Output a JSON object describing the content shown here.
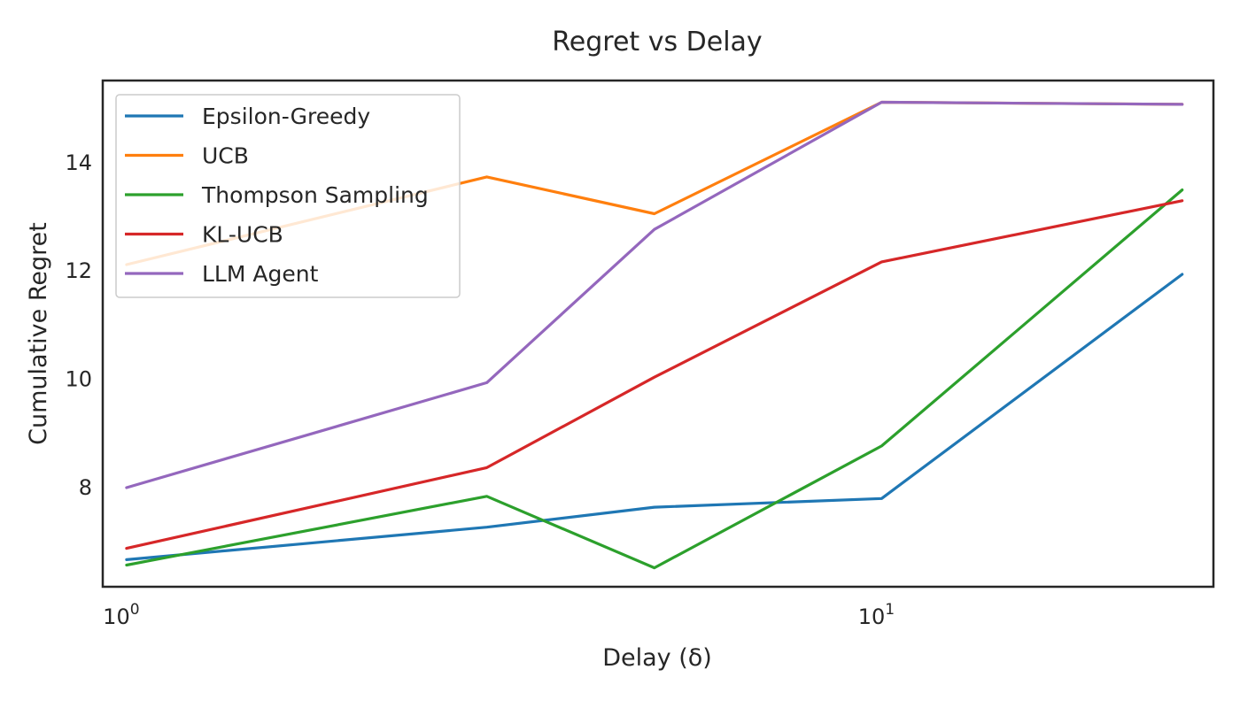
{
  "chart_data": {
    "type": "line",
    "title": "Regret vs Delay",
    "xlabel": "Delay (δ)",
    "ylabel": "Cumulative Regret",
    "x_scale": "log",
    "x": [
      1,
      3,
      5,
      10,
      25
    ],
    "xlim": [
      0.93,
      27.5
    ],
    "ylim": [
      6.15,
      15.5
    ],
    "xticks": [
      {
        "value": 1,
        "base": "10",
        "exp": "0"
      },
      {
        "value": 10,
        "base": "10",
        "exp": "1"
      }
    ],
    "yticks": [
      {
        "value": 8,
        "label": "8"
      },
      {
        "value": 10,
        "label": "10"
      },
      {
        "value": 12,
        "label": "12"
      },
      {
        "value": 14,
        "label": "14"
      }
    ],
    "grid": false,
    "legend_position": "top-left",
    "series": [
      {
        "name": "Epsilon-Greedy",
        "color": "#1f77b4",
        "values": [
          6.65,
          7.25,
          7.62,
          7.78,
          11.92
        ]
      },
      {
        "name": "UCB",
        "color": "#ff7f0e",
        "values": [
          12.1,
          13.72,
          13.04,
          15.1,
          15.06
        ]
      },
      {
        "name": "Thompson Sampling",
        "color": "#2ca02c",
        "values": [
          6.55,
          7.82,
          6.5,
          8.75,
          13.48
        ]
      },
      {
        "name": "KL-UCB",
        "color": "#d62728",
        "values": [
          6.86,
          8.35,
          10.02,
          12.15,
          13.28
        ]
      },
      {
        "name": "LLM Agent",
        "color": "#9467bd",
        "values": [
          7.98,
          9.92,
          12.75,
          15.1,
          15.06
        ]
      }
    ]
  }
}
